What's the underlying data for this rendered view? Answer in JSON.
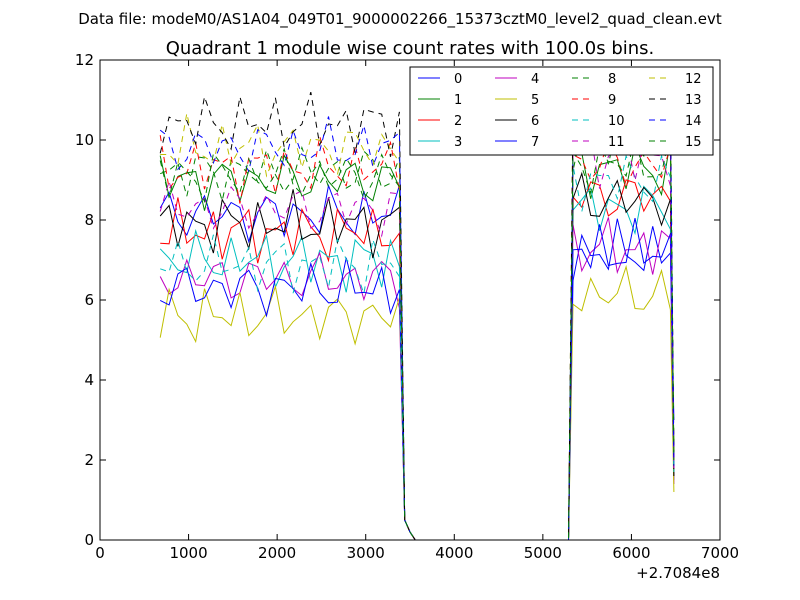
{
  "chart_data": {
    "type": "line",
    "suptitle": "Data file: modeM0/AS1A04_049T01_9000002266_15373cztM0_level2_quad_clean.evt",
    "title": "Quadrant 1 module wise count rates with 100.0s bins.",
    "xlabel": "",
    "ylabel": "",
    "xlim": [
      0,
      7000
    ],
    "ylim": [
      0,
      12
    ],
    "xticks": [
      0,
      1000,
      2000,
      3000,
      4000,
      5000,
      6000,
      7000
    ],
    "yticks": [
      0,
      2,
      4,
      6,
      8,
      10,
      12
    ],
    "x_offset_label": "+2.7084e8",
    "grid": false,
    "legend": {
      "placement": "top-right",
      "columns": 4
    },
    "bins": {
      "start": 680,
      "step": 100,
      "active_until": 3380,
      "gap": [
        [
          3440,
          0.5
        ],
        [
          3500,
          0.2
        ],
        [
          3560,
          0.0
        ],
        [
          5290,
          0.0
        ]
      ],
      "resume": 5340,
      "end": 6480
    },
    "series": [
      {
        "name": "0",
        "color": "#0000ff",
        "dash": "solid",
        "base1": 8.15,
        "base2": 7.2,
        "last": 3.0
      },
      {
        "name": "1",
        "color": "#008000",
        "dash": "solid",
        "base1": 9.0,
        "base2": 9.3,
        "last": 2.0
      },
      {
        "name": "2",
        "color": "#ff0000",
        "dash": "solid",
        "base1": 7.7,
        "base2": 8.6,
        "last": 1.5
      },
      {
        "name": "3",
        "color": "#00bfbf",
        "dash": "solid",
        "base1": 7.0,
        "base2": 8.3,
        "last": 1.5
      },
      {
        "name": "4",
        "color": "#bf00bf",
        "dash": "solid",
        "base1": 6.55,
        "base2": 7.3,
        "last": 1.4
      },
      {
        "name": "5",
        "color": "#bfbf00",
        "dash": "solid",
        "base1": 5.6,
        "base2": 6.15,
        "last": 1.2
      },
      {
        "name": "6",
        "color": "#000000",
        "dash": "solid",
        "base1": 7.9,
        "base2": 8.5,
        "last": 1.6
      },
      {
        "name": "7",
        "color": "#0000ff",
        "dash": "solid",
        "base1": 6.3,
        "base2": 7.2,
        "last": 1.8
      },
      {
        "name": "8",
        "color": "#008000",
        "dash": "dashed",
        "base1": 9.2,
        "base2": 10.0,
        "last": 2.0
      },
      {
        "name": "9",
        "color": "#ff0000",
        "dash": "dashed",
        "base1": 9.3,
        "base2": 9.4,
        "last": 2.0
      },
      {
        "name": "10",
        "color": "#00bfbf",
        "dash": "dashed",
        "base1": 6.9,
        "base2": 9.0,
        "last": 1.7
      },
      {
        "name": "11",
        "color": "#bf00bf",
        "dash": "dashed",
        "base1": 8.3,
        "base2": 9.6,
        "last": 1.8
      },
      {
        "name": "12",
        "color": "#bfbf00",
        "dash": "dashed",
        "base1": 9.8,
        "base2": 10.4,
        "last": 2.0
      },
      {
        "name": "13",
        "color": "#000000",
        "dash": "dashed",
        "base1": 10.4,
        "base2": 11.2,
        "last": 2.2
      },
      {
        "name": "14",
        "color": "#0000ff",
        "dash": "dashed",
        "base1": 9.8,
        "base2": 10.3,
        "last": 2.0
      },
      {
        "name": "15",
        "color": "#008000",
        "dash": "dashed",
        "base1": 9.1,
        "base2": 9.4,
        "last": 2.0
      }
    ]
  }
}
